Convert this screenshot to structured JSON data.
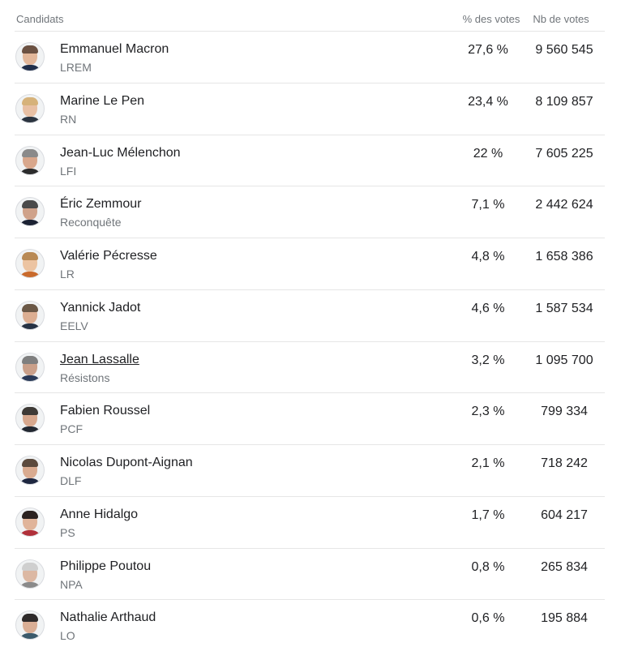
{
  "header": {
    "candidates": "Candidats",
    "percent": "% des votes",
    "votes": "Nb de votes"
  },
  "candidates": [
    {
      "name": "Emmanuel Macron",
      "party": "LREM",
      "percent": "27,6 %",
      "votes": "9 560 545",
      "skin": "#e2b79a",
      "hair": "#6b5142",
      "suit": "#1f2e4a"
    },
    {
      "name": "Marine Le Pen",
      "party": "RN",
      "percent": "23,4 %",
      "votes": "8 109 857",
      "skin": "#e8c0a4",
      "hair": "#d6b27a",
      "suit": "#2b3440"
    },
    {
      "name": "Jean-Luc Mélenchon",
      "party": "LFI",
      "percent": "22 %",
      "votes": "7 605 225",
      "skin": "#d8a78c",
      "hair": "#8a8a8a",
      "suit": "#2c2c2c"
    },
    {
      "name": "Éric Zemmour",
      "party": "Reconquête",
      "percent": "7,1 %",
      "votes": "2 442 624",
      "skin": "#cfa28a",
      "hair": "#4a4a4a",
      "suit": "#1c2233"
    },
    {
      "name": "Valérie Pécresse",
      "party": "LR",
      "percent": "4,8 %",
      "votes": "1 658 386",
      "skin": "#ecc4a2",
      "hair": "#b98a55",
      "suit": "#c96a2c"
    },
    {
      "name": "Yannick Jadot",
      "party": "EELV",
      "percent": "4,6 %",
      "votes": "1 587 534",
      "skin": "#dcae92",
      "hair": "#6b5846",
      "suit": "#263244"
    },
    {
      "name": "Jean Lassalle",
      "party": "Résistons",
      "percent": "3,2 %",
      "votes": "1 095 700",
      "skin": "#caa08a",
      "hair": "#7f7f7f",
      "suit": "#2a3a58"
    },
    {
      "name": "Fabien Roussel",
      "party": "PCF",
      "percent": "2,3 %",
      "votes": "799 334",
      "skin": "#d7a88e",
      "hair": "#3e3a36",
      "suit": "#222831"
    },
    {
      "name": "Nicolas Dupont-Aignan",
      "party": "DLF",
      "percent": "2,1 %",
      "votes": "718 242",
      "skin": "#d9ab90",
      "hair": "#5b4a3d",
      "suit": "#1e2740"
    },
    {
      "name": "Anne Hidalgo",
      "party": "PS",
      "percent": "1,7 %",
      "votes": "604 217",
      "skin": "#e0b49a",
      "hair": "#2b2220",
      "suit": "#b0303a"
    },
    {
      "name": "Philippe Poutou",
      "party": "NPA",
      "percent": "0,8 %",
      "votes": "265 834",
      "skin": "#dcb8a3",
      "hair": "#cfcfcf",
      "suit": "#8a8a8a"
    },
    {
      "name": "Nathalie Arthaud",
      "party": "LO",
      "percent": "0,6 %",
      "votes": "195 884",
      "skin": "#d9ae95",
      "hair": "#2e2a2a",
      "suit": "#3b5a6b"
    }
  ],
  "linked_candidate": "Jean Lassalle"
}
